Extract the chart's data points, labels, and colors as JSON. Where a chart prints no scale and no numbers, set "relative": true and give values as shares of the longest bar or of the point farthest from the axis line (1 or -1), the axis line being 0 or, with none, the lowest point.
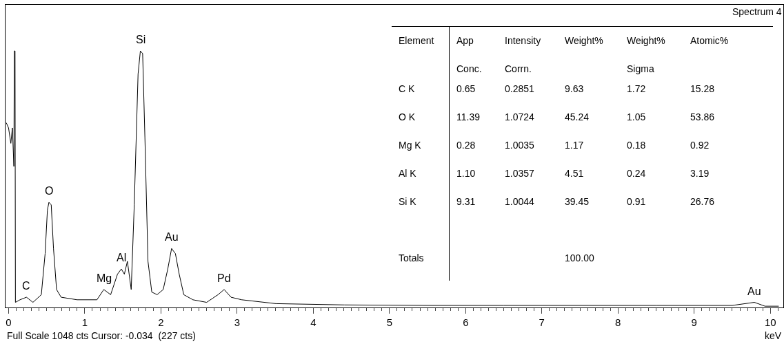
{
  "chart_data": [
    {
      "type": "line",
      "title": "Spectrum 4",
      "xlabel": "keV",
      "relative": true,
      "color": "#000000",
      "marker": "none",
      "grid": false,
      "legend": false,
      "tick_labels": "x",
      "xlim": [
        -0.04,
        10.17
      ],
      "xticks": [
        0,
        1,
        2,
        3,
        4,
        5,
        6,
        7,
        8,
        9,
        10
      ],
      "annotations": [
        {
          "text": "C",
          "x": 0.235,
          "y": 0.04
        },
        {
          "text": "O",
          "x": 0.53,
          "y": 0.41
        },
        {
          "text": "Mg",
          "x": 1.25,
          "y": 0.07
        },
        {
          "text": "Al",
          "x": 1.48,
          "y": 0.15
        },
        {
          "text": "Si",
          "x": 1.73,
          "y": 1.0
        },
        {
          "text": "Au",
          "x": 2.14,
          "y": 0.23
        },
        {
          "text": "Pd",
          "x": 2.83,
          "y": 0.07
        },
        {
          "text": "Au",
          "x": 9.79,
          "y": 0.02
        },
        "Full Scale 1048 cts Cursor: -0.034  (227 cts)"
      ],
      "x": [
        -0.03,
        0.0,
        0.03,
        0.05,
        0.07,
        0.075,
        0.085,
        0.09,
        0.15,
        0.235,
        0.32,
        0.43,
        0.48,
        0.51,
        0.53,
        0.56,
        0.59,
        0.63,
        0.69,
        0.9,
        1.16,
        1.25,
        1.34,
        1.43,
        1.48,
        1.52,
        1.56,
        1.61,
        1.65,
        1.7,
        1.73,
        1.76,
        1.79,
        1.83,
        1.88,
        1.95,
        2.03,
        2.09,
        2.14,
        2.19,
        2.24,
        2.3,
        2.42,
        2.6,
        2.75,
        2.83,
        2.92,
        3.06,
        3.51,
        4.41,
        5.5,
        6.5,
        7.5,
        8.5,
        9.5,
        9.79,
        9.93,
        10.11
      ],
      "values": [
        0.72,
        0.7,
        0.64,
        0.7,
        0.55,
        1.0,
        1.0,
        0.02,
        0.03,
        0.04,
        0.02,
        0.05,
        0.21,
        0.38,
        0.41,
        0.4,
        0.23,
        0.07,
        0.04,
        0.03,
        0.03,
        0.07,
        0.05,
        0.13,
        0.15,
        0.13,
        0.18,
        0.07,
        0.4,
        0.91,
        1.0,
        0.99,
        0.66,
        0.18,
        0.06,
        0.05,
        0.07,
        0.15,
        0.23,
        0.21,
        0.13,
        0.05,
        0.03,
        0.02,
        0.05,
        0.07,
        0.04,
        0.03,
        0.015,
        0.01,
        0.008,
        0.008,
        0.008,
        0.008,
        0.008,
        0.02,
        0.005,
        0.005
      ]
    },
    {
      "type": "other",
      "ylabel": "Element",
      "categories": [
        "App Conc.",
        "Intensity Corrn.",
        "Weight%",
        "Weight% Sigma",
        "Atomic%"
      ],
      "y_categories": [
        "C K",
        "O K",
        "Mg K",
        "Al K",
        "Si K",
        null,
        "Totals"
      ],
      "cell_labels": [
        [
          "0.65",
          "0.2851",
          "9.63",
          "1.72",
          "15.28"
        ],
        [
          "11.39",
          "1.0724",
          "45.24",
          "1.05",
          "53.86"
        ],
        [
          "0.28",
          "1.0035",
          "1.17",
          "0.18",
          "0.92"
        ],
        [
          "1.10",
          "1.0357",
          "4.51",
          "0.24",
          "3.19"
        ],
        [
          "9.31",
          "1.0044",
          "39.45",
          "0.91",
          "26.76"
        ],
        [
          null,
          null,
          null,
          null,
          null
        ],
        [
          null,
          null,
          "100.00",
          null,
          null
        ]
      ]
    }
  ]
}
